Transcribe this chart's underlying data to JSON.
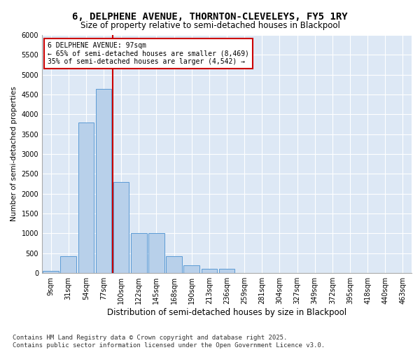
{
  "title": "6, DELPHENE AVENUE, THORNTON-CLEVELEYS, FY5 1RY",
  "subtitle": "Size of property relative to semi-detached houses in Blackpool",
  "xlabel": "Distribution of semi-detached houses by size in Blackpool",
  "ylabel": "Number of semi-detached properties",
  "categories": [
    "9sqm",
    "31sqm",
    "54sqm",
    "77sqm",
    "100sqm",
    "122sqm",
    "145sqm",
    "168sqm",
    "190sqm",
    "213sqm",
    "236sqm",
    "259sqm",
    "281sqm",
    "304sqm",
    "327sqm",
    "349sqm",
    "372sqm",
    "395sqm",
    "418sqm",
    "440sqm",
    "463sqm"
  ],
  "values": [
    60,
    430,
    3800,
    4650,
    2300,
    1000,
    1000,
    420,
    200,
    110,
    100,
    0,
    0,
    0,
    0,
    0,
    0,
    0,
    0,
    0,
    0
  ],
  "bar_color": "#b8d0ea",
  "bar_edge_color": "#5b9bd5",
  "annotation_label": "6 DELPHENE AVENUE: 97sqm",
  "annotation_line1": "← 65% of semi-detached houses are smaller (8,469)",
  "annotation_line2": "35% of semi-detached houses are larger (4,542) →",
  "annotation_box_color": "#ffffff",
  "annotation_box_edge": "#cc0000",
  "vline_color": "#cc0000",
  "vline_x": 3.5,
  "ylim": [
    0,
    6000
  ],
  "yticks": [
    0,
    500,
    1000,
    1500,
    2000,
    2500,
    3000,
    3500,
    4000,
    4500,
    5000,
    5500,
    6000
  ],
  "bg_color": "#dde8f5",
  "grid_color": "#ffffff",
  "footer": "Contains HM Land Registry data © Crown copyright and database right 2025.\nContains public sector information licensed under the Open Government Licence v3.0.",
  "title_fontsize": 10,
  "subtitle_fontsize": 8.5,
  "xlabel_fontsize": 8.5,
  "ylabel_fontsize": 7.5,
  "tick_fontsize": 7,
  "annot_fontsize": 7,
  "footer_fontsize": 6.5
}
